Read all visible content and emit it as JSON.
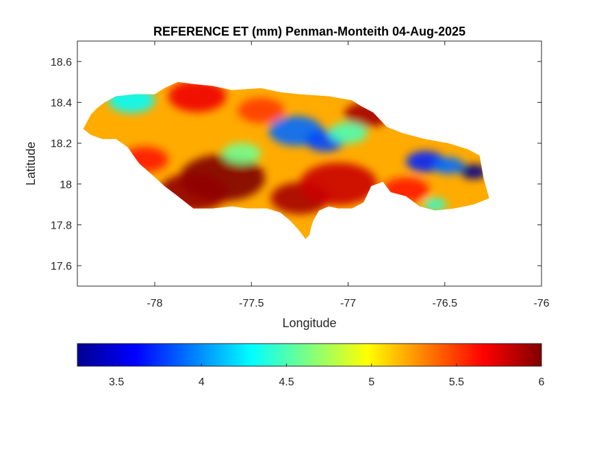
{
  "chart_data": {
    "type": "heatmap",
    "title": "REFERENCE ET (mm) Penman-Monteith 04-Aug-2025",
    "xlabel": "Longitude",
    "ylabel": "Latitude",
    "xlim": [
      -78.4,
      -76
    ],
    "ylim": [
      17.5,
      18.7
    ],
    "xticks": [
      -78,
      -77.5,
      -77,
      -76.5,
      -76
    ],
    "yticks": [
      17.6,
      17.8,
      18,
      18.2,
      18.4,
      18.6
    ],
    "xtick_labels": [
      "-78",
      "-77.5",
      "-77",
      "-76.5",
      "-76"
    ],
    "ytick_labels": [
      "17.6",
      "17.8",
      "18",
      "18.2",
      "18.4",
      "18.6"
    ],
    "colormap": "jet",
    "clim": [
      3.27,
      6
    ],
    "colorbar": {
      "location": "below",
      "ticks": [
        3.5,
        4,
        4.5,
        5,
        5.5,
        6
      ],
      "tick_labels": [
        "3.5",
        "4",
        "4.5",
        "5",
        "5.5",
        "6"
      ]
    },
    "land_outline": [
      [
        -78.37,
        18.27
      ],
      [
        -78.33,
        18.34
      ],
      [
        -78.3,
        18.37
      ],
      [
        -78.26,
        18.4
      ],
      [
        -78.2,
        18.43
      ],
      [
        -78.1,
        18.44
      ],
      [
        -78.0,
        18.44
      ],
      [
        -77.95,
        18.47
      ],
      [
        -77.88,
        18.5
      ],
      [
        -77.8,
        18.49
      ],
      [
        -77.7,
        18.48
      ],
      [
        -77.6,
        18.46
      ],
      [
        -77.45,
        18.47
      ],
      [
        -77.35,
        18.45
      ],
      [
        -77.25,
        18.44
      ],
      [
        -77.1,
        18.43
      ],
      [
        -76.98,
        18.41
      ],
      [
        -76.93,
        18.38
      ],
      [
        -76.87,
        18.35
      ],
      [
        -76.8,
        18.28
      ],
      [
        -76.72,
        18.25
      ],
      [
        -76.6,
        18.22
      ],
      [
        -76.48,
        18.2
      ],
      [
        -76.38,
        18.17
      ],
      [
        -76.32,
        18.14
      ],
      [
        -76.3,
        18.03
      ],
      [
        -76.27,
        17.93
      ],
      [
        -76.35,
        17.9
      ],
      [
        -76.45,
        17.88
      ],
      [
        -76.55,
        17.87
      ],
      [
        -76.63,
        17.89
      ],
      [
        -76.7,
        17.94
      ],
      [
        -76.78,
        17.96
      ],
      [
        -76.82,
        18.01
      ],
      [
        -76.88,
        17.99
      ],
      [
        -76.92,
        17.91
      ],
      [
        -76.98,
        17.88
      ],
      [
        -77.05,
        17.88
      ],
      [
        -77.1,
        17.89
      ],
      [
        -77.15,
        17.87
      ],
      [
        -77.18,
        17.82
      ],
      [
        -77.19,
        17.79
      ],
      [
        -77.2,
        17.75
      ],
      [
        -77.22,
        17.73
      ],
      [
        -77.26,
        17.78
      ],
      [
        -77.3,
        17.82
      ],
      [
        -77.35,
        17.86
      ],
      [
        -77.42,
        17.88
      ],
      [
        -77.52,
        17.88
      ],
      [
        -77.6,
        17.89
      ],
      [
        -77.7,
        17.88
      ],
      [
        -77.8,
        17.88
      ],
      [
        -77.88,
        17.94
      ],
      [
        -77.95,
        17.99
      ],
      [
        -78.02,
        18.05
      ],
      [
        -78.08,
        18.1
      ],
      [
        -78.14,
        18.18
      ],
      [
        -78.2,
        18.22
      ],
      [
        -78.27,
        18.22
      ],
      [
        -78.33,
        18.24
      ],
      [
        -78.37,
        18.27
      ]
    ],
    "field_hotspots": [
      {
        "lon": -77.65,
        "lat": 18.03,
        "value": 6.0,
        "r": 0.22
      },
      {
        "lon": -77.8,
        "lat": 17.96,
        "value": 5.95,
        "r": 0.18
      },
      {
        "lon": -77.25,
        "lat": 17.93,
        "value": 5.9,
        "r": 0.15
      },
      {
        "lon": -77.05,
        "lat": 18.0,
        "value": 5.8,
        "r": 0.2
      },
      {
        "lon": -76.9,
        "lat": 18.34,
        "value": 5.9,
        "r": 0.12
      },
      {
        "lon": -77.78,
        "lat": 18.43,
        "value": 5.7,
        "r": 0.15
      },
      {
        "lon": -78.05,
        "lat": 18.12,
        "value": 5.6,
        "r": 0.12
      },
      {
        "lon": -76.7,
        "lat": 17.97,
        "value": 5.6,
        "r": 0.12
      },
      {
        "lon": -77.45,
        "lat": 18.36,
        "value": 5.5,
        "r": 0.12
      },
      {
        "lon": -77.27,
        "lat": 18.26,
        "value": 3.9,
        "r": 0.14
      },
      {
        "lon": -77.12,
        "lat": 18.21,
        "value": 3.8,
        "r": 0.1
      },
      {
        "lon": -76.35,
        "lat": 18.06,
        "value": 3.3,
        "r": 0.07
      },
      {
        "lon": -76.6,
        "lat": 18.11,
        "value": 3.7,
        "r": 0.1
      },
      {
        "lon": -76.48,
        "lat": 18.09,
        "value": 3.9,
        "r": 0.08
      },
      {
        "lon": -78.12,
        "lat": 18.41,
        "value": 4.3,
        "r": 0.12
      },
      {
        "lon": -77.55,
        "lat": 18.15,
        "value": 4.6,
        "r": 0.1
      },
      {
        "lon": -76.55,
        "lat": 17.9,
        "value": 4.4,
        "r": 0.06
      },
      {
        "lon": -77.0,
        "lat": 18.25,
        "value": 4.5,
        "r": 0.1
      }
    ],
    "background_value": 5.2
  }
}
